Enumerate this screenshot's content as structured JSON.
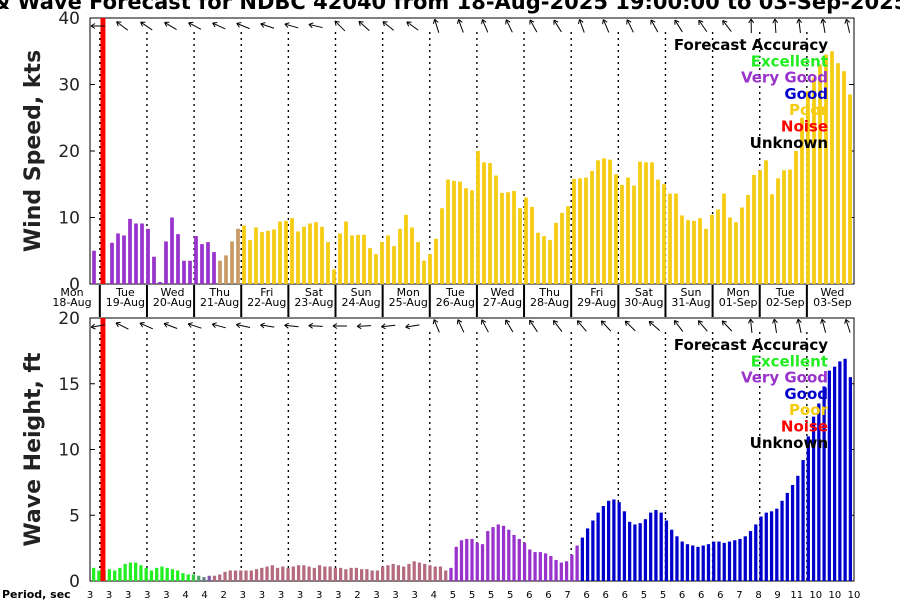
{
  "title": "& Wave Forecast for NDBC 42040 from 18-Aug-2025 19:00:00 to 03-Sep-2025",
  "colors": {
    "excellent": "#22ee22",
    "very_good": "#9933cc",
    "good": "#0000cc",
    "poor": "#f5cc10",
    "noise": "#ff0000",
    "unknown": "#000000",
    "transition": "#c79a66"
  },
  "legend": {
    "title": "Forecast Accuracy",
    "items": [
      {
        "label": "Excellent",
        "color": "#22ee22"
      },
      {
        "label": "Very Good",
        "color": "#9933cc"
      },
      {
        "label": "Good",
        "color": "#0000cc"
      },
      {
        "label": "Poor",
        "color": "#f5cc10"
      },
      {
        "label": "Noise",
        "color": "#ff0000"
      },
      {
        "label": "Unknown",
        "color": "#000000"
      }
    ]
  },
  "days": [
    {
      "name": "Mon",
      "date": "18-Aug"
    },
    {
      "name": "Tue",
      "date": "19-Aug"
    },
    {
      "name": "Wed",
      "date": "20-Aug"
    },
    {
      "name": "Thu",
      "date": "21-Aug"
    },
    {
      "name": "Fri",
      "date": "22-Aug"
    },
    {
      "name": "Sat",
      "date": "23-Aug"
    },
    {
      "name": "Sun",
      "date": "24-Aug"
    },
    {
      "name": "Mon",
      "date": "25-Aug"
    },
    {
      "name": "Tue",
      "date": "26-Aug"
    },
    {
      "name": "Wed",
      "date": "27-Aug"
    },
    {
      "name": "Thu",
      "date": "28-Aug"
    },
    {
      "name": "Fri",
      "date": "29-Aug"
    },
    {
      "name": "Sat",
      "date": "30-Aug"
    },
    {
      "name": "Sun",
      "date": "31-Aug"
    },
    {
      "name": "Mon",
      "date": "01-Sep"
    },
    {
      "name": "Tue",
      "date": "02-Sep"
    },
    {
      "name": "Wed",
      "date": "03-Sep"
    }
  ],
  "period_label": "Period, sec",
  "periods": [
    3,
    3,
    3,
    3,
    3,
    4,
    4,
    2,
    3,
    3,
    3,
    3,
    3,
    3,
    2,
    3,
    3,
    3,
    4,
    5,
    5,
    5,
    5,
    6,
    6,
    7,
    6,
    6,
    6,
    5,
    5,
    6,
    6,
    6,
    7,
    8,
    9,
    11,
    10,
    10,
    10
  ],
  "chart_data": [
    {
      "type": "bar",
      "ylabel": "Wind Speed, kts",
      "ylim": [
        0,
        40
      ],
      "yticks": [
        0,
        10,
        20,
        30,
        40
      ],
      "grid": false,
      "legend_position": "top-right",
      "now_marker_hours": 6,
      "bar_interval_hours": 3,
      "values": [
        5,
        0,
        0,
        6.2,
        7.6,
        7.3,
        9.8,
        9.1,
        9.1,
        8.3,
        4.1,
        0.3,
        6.4,
        10,
        7.5,
        3.5,
        3.5,
        7.2,
        6,
        6.3,
        4.8,
        3.5,
        4.3,
        6.4,
        8.3,
        8.8,
        6.6,
        8.5,
        7.8,
        8,
        8.2,
        9.4,
        9.5,
        9.9,
        7.9,
        8.6,
        9.1,
        9.3,
        8.6,
        6.3,
        2.2,
        7.6,
        9.4,
        7.3,
        7.4,
        7.4,
        5.4,
        4.5,
        6.3,
        7.3,
        5.7,
        8.3,
        10.4,
        8.5,
        6.3,
        3.5,
        4.5,
        6.8,
        11.4,
        15.7,
        15.5,
        15.4,
        14.4,
        14.1,
        20,
        18.3,
        18.2,
        16.3,
        13.7,
        13.8,
        14,
        11.4,
        13,
        11.6,
        7.7,
        7.2,
        6.6,
        9.2,
        10.7,
        11.7,
        15.8,
        15.9,
        16,
        17,
        18.6,
        18.9,
        18.7,
        16.5,
        14.9,
        16,
        14.8,
        18.4,
        18.3,
        18.3,
        15.7,
        15,
        13.6,
        13.6,
        10.3,
        9.6,
        9.5,
        9.9,
        8.3,
        10.4,
        11.2,
        13.6,
        10,
        9.3,
        11.5,
        13.4,
        16.4,
        17.1,
        18.6,
        13.5,
        15.9,
        17.1,
        17.2,
        20,
        25,
        29,
        31,
        33,
        34.5,
        35,
        33.2,
        32,
        28.5
      ],
      "accuracy": [
        "very_good",
        "very_good",
        "very_good",
        "very_good",
        "very_good",
        "very_good",
        "very_good",
        "very_good",
        "very_good",
        "very_good",
        "very_good",
        "very_good",
        "very_good",
        "very_good",
        "very_good",
        "very_good",
        "very_good",
        "very_good",
        "very_good",
        "very_good",
        "very_good",
        "transition",
        "transition",
        "transition",
        "transition",
        "poor"
      ]
    },
    {
      "type": "bar",
      "ylabel": "Wave Height, ft",
      "ylim": [
        0,
        20
      ],
      "yticks": [
        0,
        5,
        10,
        15,
        20
      ],
      "grid": false,
      "legend_position": "top-right",
      "now_marker_hours": 6,
      "bar_interval_hours": 3,
      "values": [
        1,
        0.8,
        0.8,
        0.9,
        0.8,
        1,
        1.3,
        1.4,
        1.4,
        1.2,
        1,
        0.8,
        1,
        1.1,
        1,
        0.9,
        0.8,
        0.6,
        0.5,
        0.5,
        0.4,
        0.3,
        0.4,
        0.4,
        0.5,
        0.7,
        0.8,
        0.8,
        0.8,
        0.8,
        0.8,
        0.9,
        1,
        1.1,
        1.2,
        1,
        1.1,
        1,
        1.1,
        1.2,
        1.2,
        1.1,
        1,
        1.2,
        1.1,
        1.1,
        1,
        1,
        0.9,
        1,
        1,
        0.9,
        0.9,
        0.8,
        0.8,
        1.1,
        1.2,
        1.3,
        1.2,
        1.1,
        1.3,
        1.5,
        1.4,
        1.3,
        1.2,
        1.1,
        1.1,
        0.8,
        1,
        2.6,
        3.1,
        3.2,
        3.2,
        2.9,
        2.8,
        3.8,
        4.1,
        4.3,
        4.2,
        3.9,
        3.5,
        3.2,
        2.9,
        2.4,
        2.2,
        2.2,
        2.1,
        1.9,
        1.6,
        1.4,
        1.5,
        2,
        2.7,
        3.3,
        4,
        4.6,
        5.2,
        5.7,
        6.1,
        6.2,
        6,
        5.3,
        4.5,
        4.3,
        4.4,
        4.7,
        5.2,
        5.4,
        5.2,
        4.6,
        3.9,
        3.4,
        3,
        2.8,
        2.7,
        2.6,
        2.7,
        2.8,
        3,
        3,
        2.9,
        3,
        3.1,
        3.2,
        3.4,
        3.8,
        4.3,
        4.9,
        5.2,
        5.3,
        5.5,
        6.1,
        6.7,
        7.3,
        8,
        9.2,
        11,
        12.5,
        13.5,
        14.8,
        16,
        16.3,
        16.7,
        16.9,
        15.5
      ],
      "accuracy_segments": [
        {
          "from": 0,
          "to": 19,
          "color": "excellent"
        },
        {
          "from": 19,
          "to": 23,
          "color": "mixed"
        },
        {
          "from": 23,
          "to": 68,
          "color": "poor_blend"
        },
        {
          "from": 68,
          "to": 93,
          "color": "very_good"
        },
        {
          "from": 93,
          "to": 200,
          "color": "good"
        }
      ]
    }
  ]
}
